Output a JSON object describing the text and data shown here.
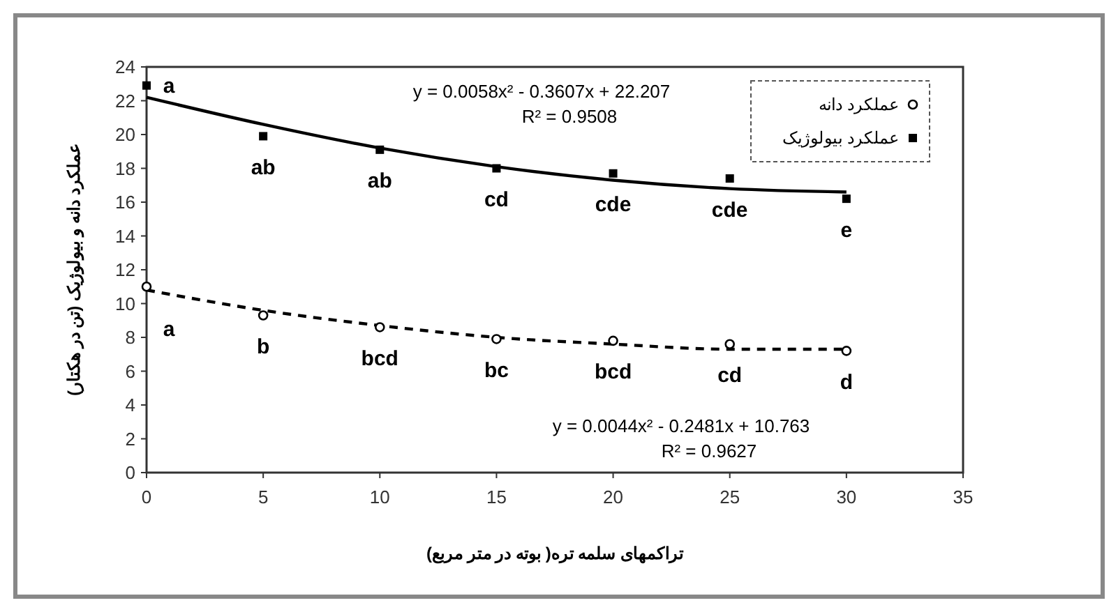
{
  "chart_data": {
    "type": "scatter",
    "xlabel": "تراکمهای سلمه تره( بوته در متر مربع)",
    "ylabel": "عملکرد دانه و بیولوژیک (تن در هکتار)",
    "xlim": [
      0,
      35
    ],
    "xticks": [
      0,
      5,
      10,
      15,
      20,
      25,
      30,
      35
    ],
    "ylim": [
      0,
      24
    ],
    "yticks": [
      0,
      2,
      4,
      6,
      8,
      10,
      12,
      14,
      16,
      18,
      20,
      22,
      24
    ],
    "grid": false,
    "legend": "top right",
    "series": [
      {
        "name": "عملکرد دانه",
        "color": "#000000",
        "marker": "circle",
        "x": [
          0,
          5,
          10,
          15,
          20,
          25,
          30
        ],
        "values": [
          11.0,
          9.3,
          8.6,
          7.9,
          7.8,
          7.6,
          7.2
        ]
      },
      {
        "name": "عملکرد بیولوژیک",
        "color": "#000000",
        "marker": "square",
        "x": [
          0,
          5,
          10,
          15,
          20,
          25,
          30
        ],
        "values": [
          22.9,
          19.9,
          19.1,
          18.0,
          17.7,
          17.4,
          16.2
        ]
      },
      {
        "color": "#000000",
        "type": "line",
        "line_style": "dashed",
        "marker": "none",
        "x": [
          0,
          5,
          10,
          15,
          20,
          25,
          30
        ],
        "values": [
          10.8,
          9.6,
          8.7,
          8.0,
          7.6,
          7.3,
          7.3
        ]
      },
      {
        "color": "#000000",
        "type": "line",
        "line_style": "solid",
        "marker": "none",
        "x": [
          0,
          5,
          10,
          15,
          20,
          25,
          30
        ],
        "values": [
          22.2,
          20.6,
          19.2,
          18.1,
          17.3,
          16.8,
          16.6
        ]
      }
    ],
    "annotations": [
      "y = 0.0058x² - 0.3607x + 22.207",
      "R² = 0.9508",
      "y = 0.0044x² - 0.2481x + 10.763",
      "R² = 0.9627",
      {
        "text": "a",
        "x": 0,
        "y": 22.9
      },
      {
        "text": "ab",
        "x": 5,
        "y": 19.9
      },
      {
        "text": "ab",
        "x": 10,
        "y": 19.1
      },
      {
        "text": "cd",
        "x": 15,
        "y": 18.0
      },
      {
        "text": "cde",
        "x": 20,
        "y": 17.7
      },
      {
        "text": "cde",
        "x": 25,
        "y": 17.4
      },
      {
        "text": "e",
        "x": 30,
        "y": 16.2
      },
      {
        "text": "a",
        "x": 0,
        "y": 11.0
      },
      {
        "text": "b",
        "x": 5,
        "y": 9.3
      },
      {
        "text": "bcd",
        "x": 10,
        "y": 8.6
      },
      {
        "text": "bc",
        "x": 15,
        "y": 7.9
      },
      {
        "text": "bcd",
        "x": 20,
        "y": 7.8
      },
      {
        "text": "cd",
        "x": 25,
        "y": 7.6
      },
      {
        "text": "d",
        "x": 30,
        "y": 7.2
      }
    ]
  }
}
